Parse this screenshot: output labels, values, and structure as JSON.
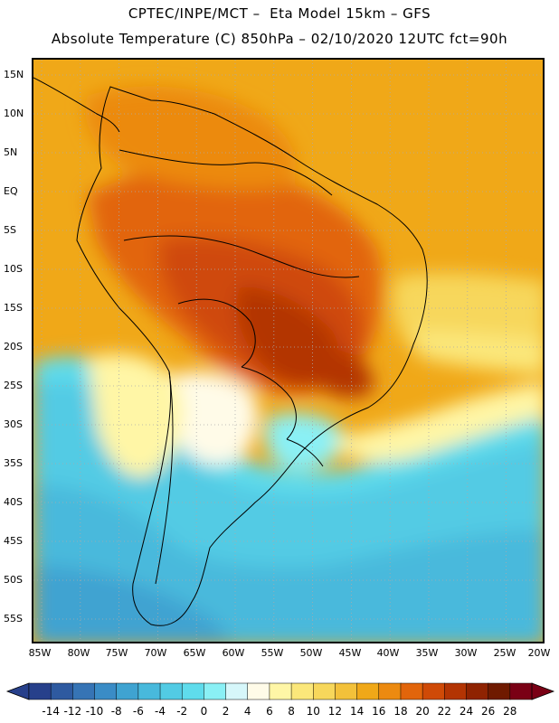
{
  "title": {
    "line1": "CPTEC/INPE/MCT –  Eta Model 15km – GFS",
    "line2": "Absolute Temperature (C) 850hPa – 02/10/2020 12UTC fct=90h"
  },
  "map": {
    "variable": "temperature-850hPa",
    "lat_ticks": [
      "15N",
      "10N",
      "5N",
      "EQ",
      "5S",
      "10S",
      "15S",
      "20S",
      "25S",
      "30S",
      "35S",
      "40S",
      "45S",
      "50S",
      "55S"
    ],
    "lon_ticks": [
      "85W",
      "80W",
      "75W",
      "70W",
      "65W",
      "60W",
      "55W",
      "50W",
      "45W",
      "40W",
      "35W",
      "30W",
      "25W",
      "20W"
    ],
    "lat_range": [
      17,
      -58
    ],
    "lon_range": [
      -85.5,
      -19.5
    ]
  },
  "colorbar": {
    "labels": [
      "-14",
      "-12",
      "-10",
      "-8",
      "-6",
      "-4",
      "-2",
      "0",
      "2",
      "4",
      "6",
      "8",
      "10",
      "12",
      "14",
      "16",
      "18",
      "20",
      "22",
      "24",
      "26",
      "28"
    ],
    "colors": [
      "#27408b",
      "#2e5aa0",
      "#3674b5",
      "#3a8cc6",
      "#3fa3d1",
      "#48b9dc",
      "#52cbe4",
      "#5fdcec",
      "#8af0f5",
      "#d6f7fa",
      "#fffbe8",
      "#fff6a6",
      "#fbe77a",
      "#f7d75b",
      "#f3c13a",
      "#f0a818",
      "#ec8a10",
      "#e2650b",
      "#cf4a07",
      "#b33403",
      "#8f2301",
      "#6f1a00",
      "#7a0015"
    ],
    "low_arrow_color": "#27408b",
    "high_arrow_color": "#7a0015"
  },
  "colors": {
    "ocean_warm": "#f0a818",
    "land_outline": "#000000",
    "grid": "#aaaaaa"
  }
}
